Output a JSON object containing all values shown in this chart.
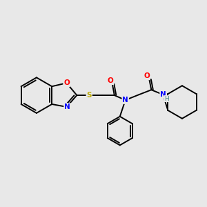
{
  "bg_color": "#e8e8e8",
  "bond_color": "#000000",
  "atom_colors": {
    "O": "#ff0000",
    "N": "#0000ff",
    "S": "#bbaa00",
    "H": "#4a8888",
    "C": "#000000"
  },
  "figsize": [
    3.0,
    3.0
  ],
  "dpi": 100,
  "lw": 1.4
}
